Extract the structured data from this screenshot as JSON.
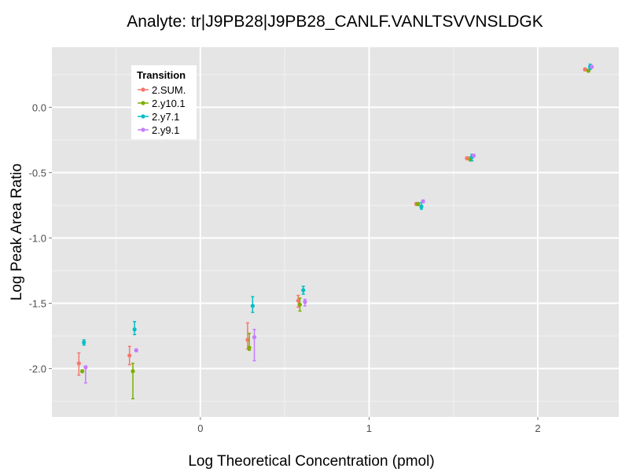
{
  "chart_data": {
    "type": "scatter",
    "title": "Analyte: tr|J9PB28|J9PB28_CANLF.VANLTSVVNSLDGK",
    "xlabel": "Log Theoretical Concentration (pmol)",
    "ylabel": "Log Peak Area Ratio",
    "xlim": [
      -0.88,
      2.48
    ],
    "ylim": [
      -2.37,
      0.46
    ],
    "x_ticks": [
      0,
      1,
      2
    ],
    "x_tick_labels": [
      "0",
      "1",
      "2"
    ],
    "y_ticks": [
      0.0,
      -0.5,
      -1.0,
      -1.5,
      -2.0
    ],
    "y_tick_labels": [
      "0.0",
      "-0.5",
      "-1.0",
      "-1.5",
      "-2.0"
    ],
    "grid": true,
    "error_bars": true,
    "legend": {
      "title": "Transition",
      "position": "top-left"
    },
    "series": [
      {
        "name": "2.SUM.",
        "color": "#F8766D",
        "points": [
          {
            "x": -0.72,
            "y": -1.96,
            "lo": -2.05,
            "hi": -1.88
          },
          {
            "x": -0.42,
            "y": -1.9,
            "lo": -1.97,
            "hi": -1.83
          },
          {
            "x": 0.28,
            "y": -1.78,
            "lo": -1.85,
            "hi": -1.65
          },
          {
            "x": 0.58,
            "y": -1.48,
            "lo": -1.53,
            "hi": -1.44
          },
          {
            "x": 1.28,
            "y": -0.74,
            "lo": -0.75,
            "hi": -0.73
          },
          {
            "x": 1.58,
            "y": -0.39,
            "lo": -0.4,
            "hi": -0.38
          },
          {
            "x": 2.28,
            "y": 0.29,
            "lo": 0.28,
            "hi": 0.3
          }
        ]
      },
      {
        "name": "2.y10.1",
        "color": "#7CAE00",
        "points": [
          {
            "x": -0.7,
            "y": -2.02,
            "lo": -2.03,
            "hi": -2.01
          },
          {
            "x": -0.4,
            "y": -2.02,
            "lo": -2.23,
            "hi": -1.96
          },
          {
            "x": 0.29,
            "y": -1.84,
            "lo": -1.86,
            "hi": -1.73
          },
          {
            "x": 0.59,
            "y": -1.51,
            "lo": -1.56,
            "hi": -1.46
          },
          {
            "x": 1.29,
            "y": -0.74,
            "lo": -0.75,
            "hi": -0.73
          },
          {
            "x": 1.6,
            "y": -0.4,
            "lo": -0.41,
            "hi": -0.38
          },
          {
            "x": 2.3,
            "y": 0.28,
            "lo": 0.27,
            "hi": 0.29
          }
        ]
      },
      {
        "name": "2.y7.1",
        "color": "#00BFC4",
        "points": [
          {
            "x": -0.69,
            "y": -1.8,
            "lo": -1.82,
            "hi": -1.78
          },
          {
            "x": -0.39,
            "y": -1.7,
            "lo": -1.74,
            "hi": -1.64
          },
          {
            "x": 0.31,
            "y": -1.52,
            "lo": -1.57,
            "hi": -1.45
          },
          {
            "x": 0.61,
            "y": -1.4,
            "lo": -1.43,
            "hi": -1.37
          },
          {
            "x": 1.31,
            "y": -0.76,
            "lo": -0.78,
            "hi": -0.73
          },
          {
            "x": 1.61,
            "y": -0.38,
            "lo": -0.41,
            "hi": -0.36
          },
          {
            "x": 2.31,
            "y": 0.31,
            "lo": 0.29,
            "hi": 0.33
          }
        ]
      },
      {
        "name": "2.y9.1",
        "color": "#C77CFF",
        "points": [
          {
            "x": -0.68,
            "y": -1.99,
            "lo": -2.11,
            "hi": -1.98
          },
          {
            "x": -0.38,
            "y": -1.86,
            "lo": -1.87,
            "hi": -1.85
          },
          {
            "x": 0.32,
            "y": -1.76,
            "lo": -1.94,
            "hi": -1.7
          },
          {
            "x": 0.62,
            "y": -1.49,
            "lo": -1.52,
            "hi": -1.47
          },
          {
            "x": 1.32,
            "y": -0.72,
            "lo": -0.73,
            "hi": -0.71
          },
          {
            "x": 1.62,
            "y": -0.37,
            "lo": -0.38,
            "hi": -0.36
          },
          {
            "x": 2.32,
            "y": 0.31,
            "lo": 0.3,
            "hi": 0.32
          }
        ]
      }
    ]
  }
}
